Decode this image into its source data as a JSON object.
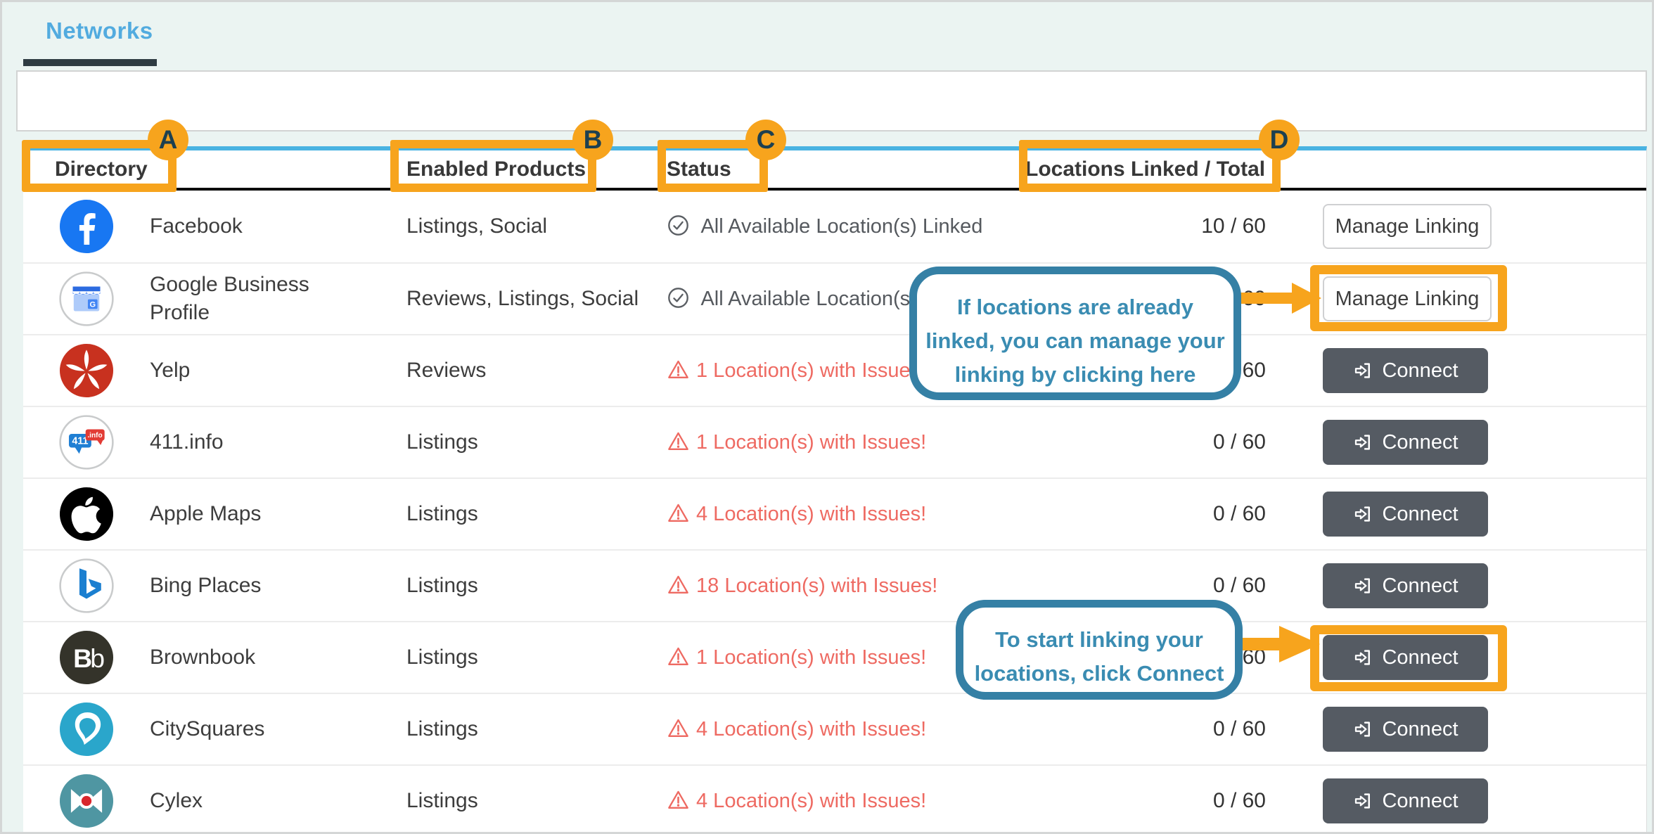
{
  "tab": {
    "label": "Networks"
  },
  "colors": {
    "annotation_orange": "#f7a41d",
    "callout_blue_border": "#3580a5",
    "callout_blue_text": "#3a8cb2",
    "issue_red": "#ee6a62",
    "tab_blue": "#52abdf",
    "table_top_border": "#49b3e2",
    "connect_button_gray": "#555b63"
  },
  "table": {
    "headers": [
      {
        "label": "Directory",
        "badge": "A"
      },
      {
        "label": "Enabled Products",
        "badge": "B"
      },
      {
        "label": "Status",
        "badge": "C"
      },
      {
        "label": "Locations Linked / Total",
        "badge": "D"
      }
    ],
    "rows": [
      {
        "name": "Facebook",
        "icon": "facebook-icon",
        "products": "Listings, Social",
        "status_type": "ok",
        "status_text": "All Available Location(s) Linked",
        "linked": "10 / 60",
        "action": "Manage Linking"
      },
      {
        "name": "Google Business Profile",
        "icon": "google-business-icon",
        "products": "Reviews, Listings, Social",
        "status_type": "ok",
        "status_text": "All Available Location(s) Linked",
        "linked": "10 / 60",
        "action": "Manage Linking"
      },
      {
        "name": "Yelp",
        "icon": "yelp-icon",
        "products": "Reviews",
        "status_type": "issue",
        "status_text": "1 Location(s) with Issues!",
        "linked": "0 / 60",
        "action": "Connect"
      },
      {
        "name": "411.info",
        "icon": "411-info-icon",
        "products": "Listings",
        "status_type": "issue",
        "status_text": "1 Location(s) with Issues!",
        "linked": "0 / 60",
        "action": "Connect"
      },
      {
        "name": "Apple Maps",
        "icon": "apple-maps-icon",
        "products": "Listings",
        "status_type": "issue",
        "status_text": "4 Location(s) with Issues!",
        "linked": "0 / 60",
        "action": "Connect"
      },
      {
        "name": "Bing Places",
        "icon": "bing-places-icon",
        "products": "Listings",
        "status_type": "issue",
        "status_text": "18 Location(s) with Issues!",
        "linked": "0 / 60",
        "action": "Connect"
      },
      {
        "name": "Brownbook",
        "icon": "brownbook-icon",
        "products": "Listings",
        "status_type": "issue",
        "status_text": "1 Location(s) with Issues!",
        "linked": "0 / 60",
        "action": "Connect"
      },
      {
        "name": "CitySquares",
        "icon": "citysquares-icon",
        "products": "Listings",
        "status_type": "issue",
        "status_text": "4 Location(s) with Issues!",
        "linked": "0 / 60",
        "action": "Connect"
      },
      {
        "name": "Cylex",
        "icon": "cylex-icon",
        "products": "Listings",
        "status_type": "issue",
        "status_text": "4 Location(s) with Issues!",
        "linked": "0 / 60",
        "action": "Connect"
      }
    ]
  },
  "annotations": {
    "callout_manage": {
      "lines": [
        "If locations are already",
        "linked, you can manage your",
        "linking by clicking here"
      ]
    },
    "callout_connect": {
      "line1": "To start linking your",
      "line2_prefix": "locations, click ",
      "line2_bold": "Connect"
    }
  }
}
